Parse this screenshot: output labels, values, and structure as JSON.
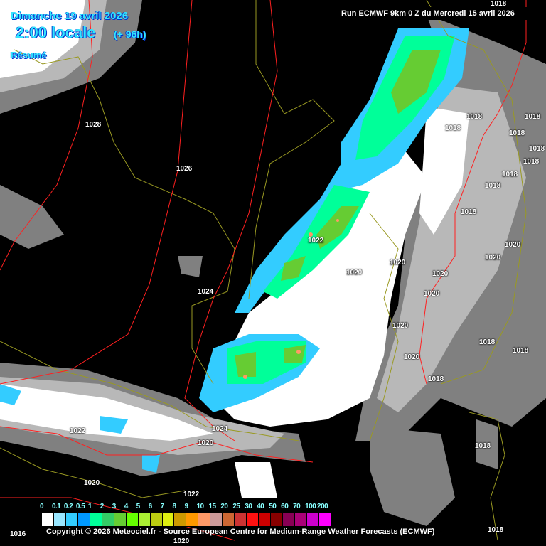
{
  "header": {
    "date": "Dimanche 19 avril 2026",
    "time": "2:00 locale",
    "lead": "(+ 96h)",
    "summary": "Résumé",
    "run": "Run ECMWF 9km 0 Z du Mercredi 15 avril 2026"
  },
  "pressure_labels": [
    "1028",
    "1026",
    "1022",
    "1020",
    "1020",
    "1020",
    "1020",
    "1024",
    "1020",
    "1020",
    "1018",
    "1018",
    "1018",
    "1018",
    "1018",
    "1018",
    "1018",
    "1018",
    "1018",
    "1018",
    "1018",
    "1018",
    "1020",
    "1020",
    "1022",
    "1024",
    "1020",
    "1020",
    "1022",
    "1016",
    "1020",
    "1018",
    "1018",
    "1018"
  ],
  "legend": {
    "ticks": [
      "0",
      "0.1",
      "0.2",
      "0.5",
      "1",
      "2",
      "3",
      "4",
      "5",
      "6",
      "7",
      "8",
      "9",
      "10",
      "15",
      "20",
      "25",
      "30",
      "40",
      "50",
      "60",
      "70",
      "100",
      "200"
    ],
    "colors": [
      "#ffffff",
      "#99e6ff",
      "#33ccff",
      "#0099ff",
      "#00ff99",
      "#33cc66",
      "#66cc33",
      "#66ff00",
      "#aaee33",
      "#bbcc11",
      "#ddee11",
      "#cc9900",
      "#ff9900",
      "#ff9966",
      "#cc9999",
      "#cc6633",
      "#cc3333",
      "#ff1111",
      "#cc0000",
      "#880000",
      "#880055",
      "#aa0077",
      "#cc00cc",
      "#ff00ff"
    ]
  },
  "copyright": "Copyright © 2026 Meteociel.fr - Source European Centre for Medium-Range Weather Forecasts (ECMWF)"
}
